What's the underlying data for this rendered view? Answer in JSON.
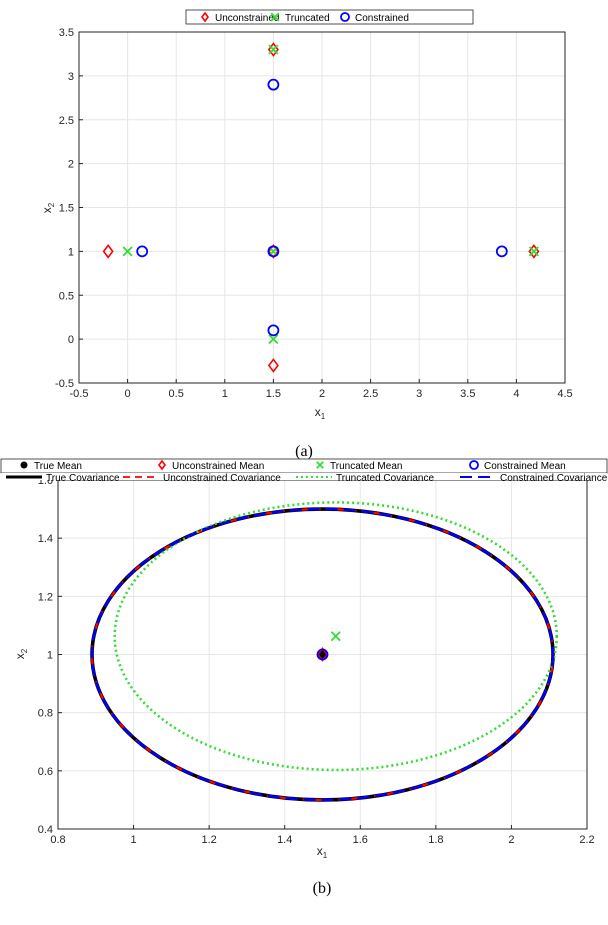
{
  "figure": {
    "caption_a": "(a)",
    "caption_b": "(b)"
  },
  "chart_data": [
    {
      "type": "scatter",
      "panel": "a",
      "xlabel": "x",
      "xlabel_sub": "1",
      "ylabel": "x",
      "ylabel_sub": "2",
      "xlim": [
        -0.5,
        4.5
      ],
      "ylim": [
        -0.5,
        3.5
      ],
      "xticks": [
        -0.5,
        0,
        0.5,
        1,
        1.5,
        2,
        2.5,
        3,
        3.5,
        4,
        4.5
      ],
      "xtick_labels": [
        "-0.5",
        "0",
        "0.5",
        "1",
        "1.5",
        "2",
        "2.5",
        "3",
        "3.5",
        "4",
        "4.5"
      ],
      "yticks": [
        -0.5,
        0,
        0.5,
        1,
        1.5,
        2,
        2.5,
        3,
        3.5
      ],
      "ytick_labels": [
        "-0.5",
        "0",
        "0.5",
        "1",
        "1.5",
        "2",
        "2.5",
        "3",
        "3.5"
      ],
      "grid": true,
      "legend_position": "top",
      "series": [
        {
          "name": "Unconstrained",
          "marker": "diamond",
          "color": "#ff0000",
          "points": [
            [
              -0.2,
              1.0
            ],
            [
              1.5,
              1.0
            ],
            [
              1.5,
              3.3
            ],
            [
              4.18,
              1.0
            ],
            [
              1.5,
              -0.3
            ]
          ]
        },
        {
          "name": "Truncated",
          "marker": "x",
          "color": "#33dd33",
          "points": [
            [
              0.0,
              1.0
            ],
            [
              1.5,
              1.0
            ],
            [
              1.5,
              3.3
            ],
            [
              4.18,
              1.0
            ],
            [
              1.5,
              0.0
            ]
          ]
        },
        {
          "name": "Constrained",
          "marker": "circle",
          "color": "#0000ff",
          "points": [
            [
              0.15,
              1.0
            ],
            [
              1.5,
              1.0
            ],
            [
              1.5,
              2.9
            ],
            [
              3.85,
              1.0
            ],
            [
              1.5,
              0.1
            ]
          ]
        }
      ]
    },
    {
      "type": "line",
      "panel": "b",
      "xlabel": "x",
      "xlabel_sub": "1",
      "ylabel": "x",
      "ylabel_sub": "2",
      "xlim": [
        0.8,
        2.2
      ],
      "ylim": [
        0.4,
        1.6
      ],
      "xticks": [
        0.8,
        1,
        1.2,
        1.4,
        1.6,
        1.8,
        2,
        2.2
      ],
      "xtick_labels": [
        "0.8",
        "1",
        "1.2",
        "1.4",
        "1.6",
        "1.8",
        "2",
        "2.2"
      ],
      "yticks": [
        0.4,
        0.6,
        0.8,
        1,
        1.2,
        1.4,
        1.6
      ],
      "ytick_labels": [
        "0.4",
        "0.6",
        "0.8",
        "1",
        "1.2",
        "1.4",
        "1.6"
      ],
      "grid": true,
      "legend_position": "top",
      "means": [
        {
          "name": "True Mean",
          "marker": "dot",
          "color": "#000000",
          "x": 1.5,
          "y": 1.0
        },
        {
          "name": "Unconstrained Mean",
          "marker": "diamond",
          "color": "#ff0000",
          "x": 1.5,
          "y": 1.0
        },
        {
          "name": "Truncated Mean",
          "marker": "x",
          "color": "#33dd33",
          "x": 1.535,
          "y": 1.063
        },
        {
          "name": "Constrained Mean",
          "marker": "circle",
          "color": "#0000ff",
          "x": 1.5,
          "y": 1.0
        }
      ],
      "covariances": [
        {
          "name": "True Covariance",
          "style": "solid",
          "color": "#000000",
          "center": [
            1.5,
            1.0
          ],
          "radius_x": 0.61,
          "radius_y": 0.5
        },
        {
          "name": "Unconstrained Covariance",
          "style": "dashed",
          "color": "#ff0000",
          "center": [
            1.5,
            1.0
          ],
          "radius_x": 0.61,
          "radius_y": 0.5
        },
        {
          "name": "Truncated Covariance",
          "style": "dotted",
          "color": "#33dd33",
          "center": [
            1.535,
            1.063
          ],
          "radius_x": 0.585,
          "radius_y": 0.46
        },
        {
          "name": "Constrained Covariance",
          "style": "longdash",
          "color": "#0000ff",
          "center": [
            1.5,
            1.0
          ],
          "radius_x": 0.61,
          "radius_y": 0.5
        }
      ]
    }
  ]
}
